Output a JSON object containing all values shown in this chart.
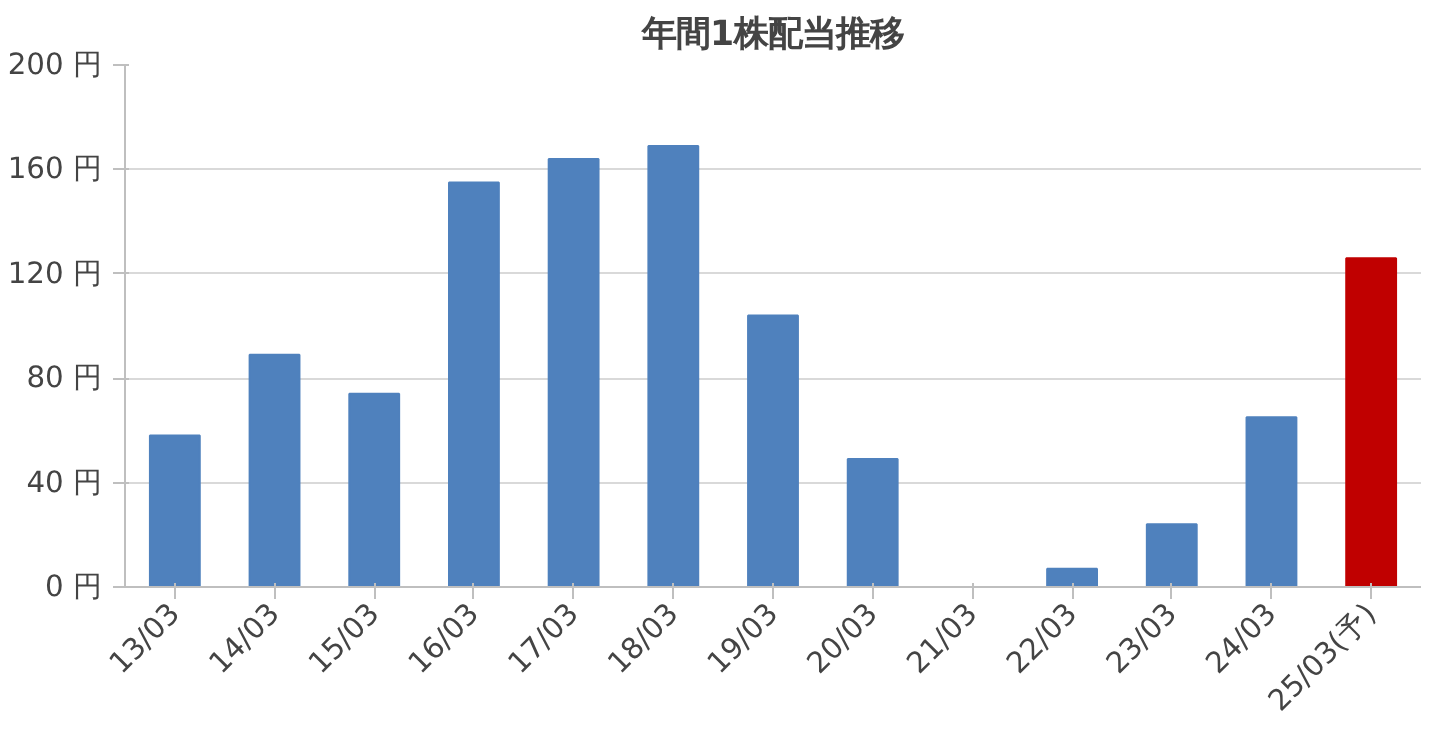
{
  "chart_data": {
    "type": "bar",
    "title": "年間1株配当推移",
    "categories": [
      "13/03",
      "14/03",
      "15/03",
      "16/03",
      "17/03",
      "18/03",
      "19/03",
      "20/03",
      "21/03",
      "22/03",
      "23/03",
      "24/03",
      "25/03(予)"
    ],
    "values": [
      58,
      89,
      74,
      155,
      164,
      169,
      104,
      49,
      0,
      7,
      24,
      65,
      126
    ],
    "colors": [
      "#4f81bd",
      "#4f81bd",
      "#4f81bd",
      "#4f81bd",
      "#4f81bd",
      "#4f81bd",
      "#4f81bd",
      "#4f81bd",
      "#4f81bd",
      "#4f81bd",
      "#4f81bd",
      "#4f81bd",
      "#c00000"
    ],
    "ylim": [
      0,
      200
    ],
    "yticks": [
      {
        "value": 0,
        "label": "0 円"
      },
      {
        "value": 40,
        "label": "40 円"
      },
      {
        "value": 80,
        "label": "80 円"
      },
      {
        "value": 120,
        "label": "120 円"
      },
      {
        "value": 160,
        "label": "160 円"
      },
      {
        "value": 200,
        "label": "200 円"
      }
    ],
    "grid": "y"
  }
}
